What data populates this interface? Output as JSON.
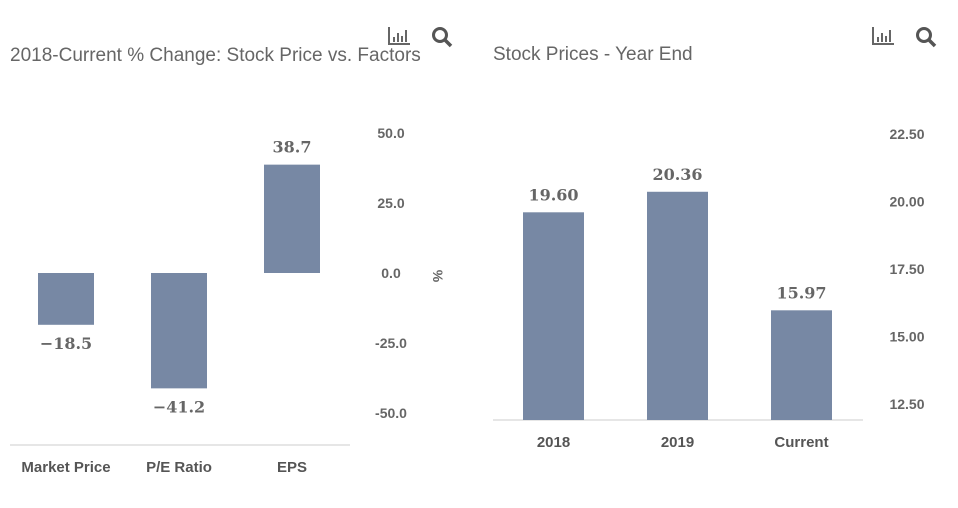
{
  "chart_data": [
    {
      "type": "bar",
      "title": "2018-Current % Change: Stock Price vs. Factors",
      "categories": [
        "Market Price",
        "P/E Ratio",
        "EPS"
      ],
      "values": [
        -18.5,
        -41.2,
        38.7
      ],
      "data_labels": [
        "-18.5",
        "-41.2",
        "38.7"
      ],
      "ylabel": "%",
      "ylim": [
        -50,
        50
      ],
      "yticks": [
        "50.0",
        "25.0",
        "0.0",
        "-25.0",
        "-50.0"
      ],
      "ytick_values": [
        50,
        25,
        0,
        -25,
        -50
      ],
      "y_axis_position": "right",
      "grid": false,
      "bar_color": "#7788a4"
    },
    {
      "type": "bar",
      "title": "Stock Prices - Year End",
      "categories": [
        "2018",
        "2019",
        "Current"
      ],
      "values": [
        19.6,
        20.36,
        15.97
      ],
      "data_labels": [
        "19.60",
        "20.36",
        "15.97"
      ],
      "ylabel": "",
      "ylim": [
        11.9,
        22.5
      ],
      "yticks": [
        "22.50",
        "20.00",
        "17.50",
        "15.00",
        "12.50"
      ],
      "ytick_values": [
        22.5,
        20,
        17.5,
        15,
        12.5
      ],
      "y_axis_position": "right",
      "grid": false,
      "bar_color": "#7788a4"
    }
  ],
  "icons": {
    "chart": "bar-chart-icon",
    "search": "search-icon"
  }
}
